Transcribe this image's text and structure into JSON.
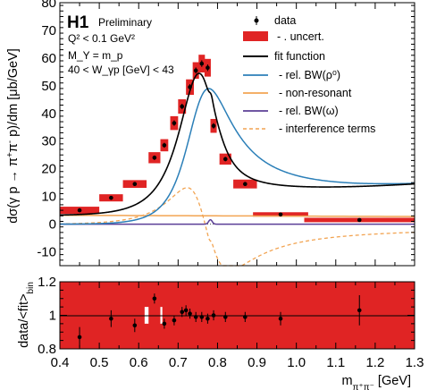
{
  "chart_data": [
    {
      "type": "line",
      "panel": "main",
      "title": "H1",
      "subtitle": "Preliminary",
      "ylabel": "dσ(γ p → π⁺π⁻ p)/dm [μb/GeV]",
      "xlim": [
        0.4,
        1.3
      ],
      "ylim": [
        -15,
        80
      ],
      "yticks": [
        -10,
        0,
        10,
        20,
        30,
        40,
        50,
        60,
        70,
        80
      ],
      "conditions": [
        "Q² < 0.1 GeV²",
        "M_Y = m_p",
        "40 < W_γp [GeV] < 43"
      ],
      "legend": {
        "data": "data",
        "uncert": "- . uncert.",
        "fit": "fit function",
        "bw_rho": "- rel. BW(ρ⁰)",
        "nonres": "- non-resonant",
        "bw_omega": "- rel. BW(ω)",
        "interf": "- interference terms"
      },
      "colors": {
        "data": "#000000",
        "band": "#e02424",
        "fit": "#000000",
        "bw_rho": "#2b7fb8",
        "nonres": "#f2a452",
        "bw_omega": "#5b3f96",
        "interf": "#f2a452"
      },
      "data_points": [
        {
          "x": 0.45,
          "y": 5.0,
          "xw": 0.05,
          "yerr": 0.5,
          "band": 1.3
        },
        {
          "x": 0.53,
          "y": 9.5,
          "xw": 0.03,
          "yerr": 0.6,
          "band": 1.3
        },
        {
          "x": 0.59,
          "y": 14.5,
          "xw": 0.03,
          "yerr": 0.7,
          "band": 1.4
        },
        {
          "x": 0.64,
          "y": 24.0,
          "xw": 0.015,
          "yerr": 0.8,
          "band": 2.0
        },
        {
          "x": 0.665,
          "y": 28.5,
          "xw": 0.01,
          "yerr": 0.9,
          "band": 2.2
        },
        {
          "x": 0.69,
          "y": 36.5,
          "xw": 0.01,
          "yerr": 1.0,
          "band": 2.5
        },
        {
          "x": 0.71,
          "y": 42.5,
          "xw": 0.01,
          "yerr": 1.0,
          "band": 2.6
        },
        {
          "x": 0.73,
          "y": 49.5,
          "xw": 0.01,
          "yerr": 1.1,
          "band": 2.8
        },
        {
          "x": 0.745,
          "y": 55.5,
          "xw": 0.008,
          "yerr": 1.1,
          "band": 3.0
        },
        {
          "x": 0.76,
          "y": 58.0,
          "xw": 0.008,
          "yerr": 1.2,
          "band": 3.2
        },
        {
          "x": 0.775,
          "y": 56.5,
          "xw": 0.008,
          "yerr": 1.2,
          "band": 3.2
        },
        {
          "x": 0.79,
          "y": 35.5,
          "xw": 0.008,
          "yerr": 1.0,
          "band": 2.5
        },
        {
          "x": 0.82,
          "y": 23.5,
          "xw": 0.015,
          "yerr": 0.8,
          "band": 2.0
        },
        {
          "x": 0.87,
          "y": 14.5,
          "xw": 0.03,
          "yerr": 0.6,
          "band": 1.6
        },
        {
          "x": 0.96,
          "y": 3.5,
          "xw": 0.07,
          "yerr": 0.4,
          "band": 0.8
        },
        {
          "x": 1.16,
          "y": 1.5,
          "xw": 0.14,
          "yerr": 0.3,
          "band": 0.8
        }
      ]
    },
    {
      "type": "scatter",
      "panel": "ratio",
      "ylabel": "data/<fit>_bin",
      "xlabel": "m_π⁺π⁻ [GeV]",
      "xlim": [
        0.4,
        1.3
      ],
      "ylim": [
        0.8,
        1.2
      ],
      "xticks": [
        0.4,
        0.5,
        0.6,
        0.7,
        0.8,
        0.9,
        1.0,
        1.1,
        1.2,
        1.3
      ],
      "yticks": [
        0.8,
        1.0,
        1.2
      ],
      "ytick_labels": [
        "0.8",
        "1",
        "1.2"
      ],
      "band_range": [
        0.4,
        1.3
      ],
      "band_halfwidth": [
        0.2,
        0.2
      ],
      "points": [
        {
          "x": 0.45,
          "y": 0.87,
          "err": 0.06
        },
        {
          "x": 0.53,
          "y": 0.98,
          "err": 0.05
        },
        {
          "x": 0.59,
          "y": 0.94,
          "err": 0.04
        },
        {
          "x": 0.64,
          "y": 1.1,
          "err": 0.03
        },
        {
          "x": 0.665,
          "y": 0.95,
          "err": 0.03
        },
        {
          "x": 0.69,
          "y": 0.97,
          "err": 0.03
        },
        {
          "x": 0.71,
          "y": 1.02,
          "err": 0.03
        },
        {
          "x": 0.72,
          "y": 1.03,
          "err": 0.03
        },
        {
          "x": 0.73,
          "y": 1.01,
          "err": 0.03
        },
        {
          "x": 0.745,
          "y": 0.99,
          "err": 0.03
        },
        {
          "x": 0.76,
          "y": 0.99,
          "err": 0.03
        },
        {
          "x": 0.775,
          "y": 0.98,
          "err": 0.03
        },
        {
          "x": 0.79,
          "y": 1.0,
          "err": 0.03
        },
        {
          "x": 0.82,
          "y": 0.99,
          "err": 0.03
        },
        {
          "x": 0.87,
          "y": 0.99,
          "err": 0.03
        },
        {
          "x": 0.96,
          "y": 0.98,
          "err": 0.04
        },
        {
          "x": 1.16,
          "y": 1.03,
          "err": 0.09
        }
      ]
    }
  ]
}
